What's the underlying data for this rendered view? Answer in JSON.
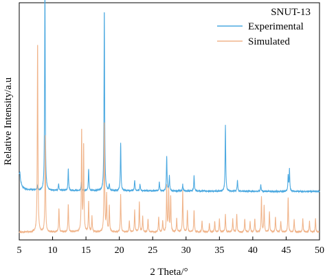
{
  "chart_data": {
    "type": "line",
    "title": "SNUT-13",
    "xlabel": "2 Theta/°",
    "ylabel": "Relative Intensity/a.u",
    "xlim": [
      5,
      50
    ],
    "ylim": [
      0,
      1
    ],
    "x_ticks": [
      5,
      10,
      15,
      20,
      25,
      30,
      35,
      40,
      45,
      50
    ],
    "y_ticks_shown": false,
    "grid": false,
    "legend_position": "top-right",
    "series": [
      {
        "name": "Experimental",
        "color": "#4aa8e0",
        "baseline": 0.21,
        "background": [
          [
            5.0,
            0.28
          ],
          [
            5.2,
            0.25
          ],
          [
            5.5,
            0.225
          ],
          [
            6.0,
            0.215
          ],
          [
            8.0,
            0.21
          ],
          [
            50.0,
            0.205
          ]
        ],
        "peaks": [
          [
            5.1,
            0.03
          ],
          [
            7.7,
            0.02
          ],
          [
            8.85,
            0.97
          ],
          [
            10.9,
            0.03
          ],
          [
            12.35,
            0.1
          ],
          [
            14.3,
            0.04
          ],
          [
            15.4,
            0.1
          ],
          [
            17.75,
            0.84
          ],
          [
            18.5,
            0.03
          ],
          [
            20.2,
            0.22
          ],
          [
            22.3,
            0.05
          ],
          [
            23.1,
            0.03
          ],
          [
            26.0,
            0.04
          ],
          [
            27.1,
            0.16
          ],
          [
            27.5,
            0.07
          ],
          [
            29.5,
            0.03
          ],
          [
            31.2,
            0.07
          ],
          [
            35.9,
            0.3
          ],
          [
            37.7,
            0.05
          ],
          [
            41.2,
            0.03
          ],
          [
            45.3,
            0.07
          ],
          [
            45.5,
            0.1
          ]
        ]
      },
      {
        "name": "Simulated",
        "color": "#f0b48a",
        "baseline": 0.02,
        "background": [
          [
            5.0,
            0.02
          ],
          [
            50.0,
            0.02
          ]
        ],
        "peaks": [
          [
            7.75,
            0.88
          ],
          [
            8.9,
            0.44
          ],
          [
            10.95,
            0.11
          ],
          [
            12.35,
            0.13
          ],
          [
            14.35,
            0.47
          ],
          [
            14.65,
            0.4
          ],
          [
            15.4,
            0.14
          ],
          [
            15.9,
            0.07
          ],
          [
            17.75,
            0.51
          ],
          [
            18.1,
            0.17
          ],
          [
            18.5,
            0.12
          ],
          [
            20.2,
            0.17
          ],
          [
            21.5,
            0.05
          ],
          [
            22.3,
            0.1
          ],
          [
            23.0,
            0.14
          ],
          [
            23.5,
            0.07
          ],
          [
            24.3,
            0.06
          ],
          [
            25.9,
            0.07
          ],
          [
            26.5,
            0.05
          ],
          [
            27.1,
            0.21
          ],
          [
            27.4,
            0.19
          ],
          [
            27.7,
            0.16
          ],
          [
            28.6,
            0.06
          ],
          [
            29.5,
            0.19
          ],
          [
            30.2,
            0.1
          ],
          [
            31.2,
            0.1
          ],
          [
            32.4,
            0.05
          ],
          [
            33.5,
            0.04
          ],
          [
            34.3,
            0.05
          ],
          [
            35.0,
            0.06
          ],
          [
            35.9,
            0.08
          ],
          [
            37.0,
            0.06
          ],
          [
            37.6,
            0.08
          ],
          [
            38.8,
            0.06
          ],
          [
            39.6,
            0.05
          ],
          [
            40.3,
            0.06
          ],
          [
            41.3,
            0.16
          ],
          [
            41.7,
            0.12
          ],
          [
            42.5,
            0.09
          ],
          [
            43.4,
            0.07
          ],
          [
            44.2,
            0.05
          ],
          [
            45.3,
            0.16
          ],
          [
            46.2,
            0.06
          ],
          [
            47.5,
            0.06
          ],
          [
            48.5,
            0.05
          ],
          [
            49.4,
            0.06
          ]
        ]
      }
    ]
  }
}
